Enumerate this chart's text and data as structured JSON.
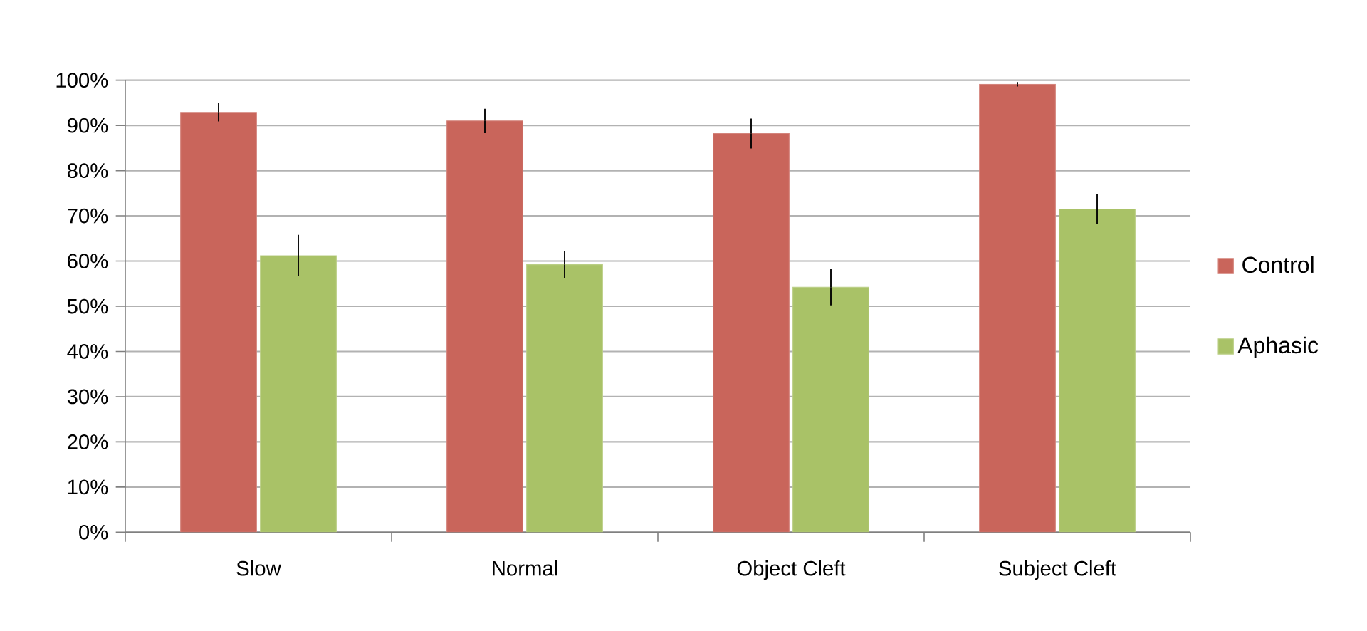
{
  "chart_data": {
    "type": "bar",
    "categories": [
      "Slow",
      "Normal",
      "Object Cleft",
      "Subject Cleft"
    ],
    "series": [
      {
        "name": "Control",
        "color": "#c9655b",
        "values": [
          92.9,
          91.0,
          88.2,
          99.1
        ],
        "errors": [
          2.0,
          2.7,
          3.3,
          0.5
        ]
      },
      {
        "name": "Aphasic",
        "color": "#a9c267",
        "values": [
          61.2,
          59.2,
          54.2,
          71.5
        ],
        "errors": [
          4.6,
          3.0,
          4.0,
          3.3
        ]
      }
    ],
    "ylim": [
      0,
      100
    ],
    "yticks": [
      {
        "value": 0,
        "label": "0%"
      },
      {
        "value": 10,
        "label": "10%"
      },
      {
        "value": 20,
        "label": "20%"
      },
      {
        "value": 30,
        "label": "30%"
      },
      {
        "value": 40,
        "label": "40%"
      },
      {
        "value": 50,
        "label": "50%"
      },
      {
        "value": 60,
        "label": "60%"
      },
      {
        "value": 70,
        "label": "70%"
      },
      {
        "value": 80,
        "label": "80%"
      },
      {
        "value": 90,
        "label": "90%"
      },
      {
        "value": 100,
        "label": "100%"
      }
    ],
    "grid": "y",
    "legend": "right"
  }
}
